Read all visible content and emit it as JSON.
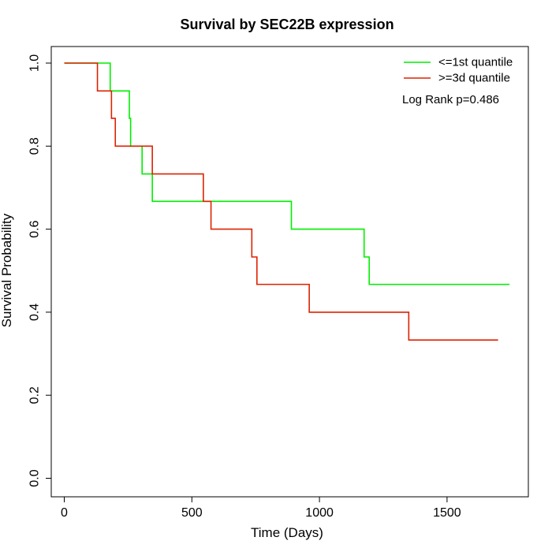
{
  "chart_data": {
    "type": "line",
    "title": "Survival by SEC22B expression",
    "xlabel": "Time (Days)",
    "ylabel": "Survival Probability",
    "xlim": [
      0,
      1750
    ],
    "ylim": [
      0,
      1
    ],
    "x_ticks": [
      0,
      500,
      1000,
      1500
    ],
    "y_ticks": [
      0.0,
      0.2,
      0.4,
      0.6,
      0.8,
      1.0
    ],
    "x_tick_labels": [
      "0",
      "500",
      "1000",
      "1500"
    ],
    "y_tick_labels": [
      "0.0",
      "0.2",
      "0.4",
      "0.6",
      "0.8",
      "1.0"
    ],
    "grid": false,
    "legend_position": "top-right",
    "annotation": "Log Rank p=0.486",
    "series": [
      {
        "name": "<=1st quantile",
        "color": "#00ee00",
        "steps": [
          [
            0,
            1.0
          ],
          [
            180,
            0.933
          ],
          [
            255,
            0.867
          ],
          [
            260,
            0.8
          ],
          [
            305,
            0.733
          ],
          [
            345,
            0.667
          ],
          [
            890,
            0.6
          ],
          [
            1175,
            0.533
          ],
          [
            1195,
            0.467
          ],
          [
            1745,
            0.467
          ]
        ]
      },
      {
        "name": ">=3d quantile",
        "color": "#dd2200",
        "steps": [
          [
            0,
            1.0
          ],
          [
            130,
            0.933
          ],
          [
            185,
            0.867
          ],
          [
            200,
            0.8
          ],
          [
            345,
            0.733
          ],
          [
            545,
            0.667
          ],
          [
            575,
            0.6
          ],
          [
            735,
            0.533
          ],
          [
            755,
            0.467
          ],
          [
            960,
            0.4
          ],
          [
            1350,
            0.333
          ],
          [
            1700,
            0.333
          ]
        ]
      }
    ]
  }
}
